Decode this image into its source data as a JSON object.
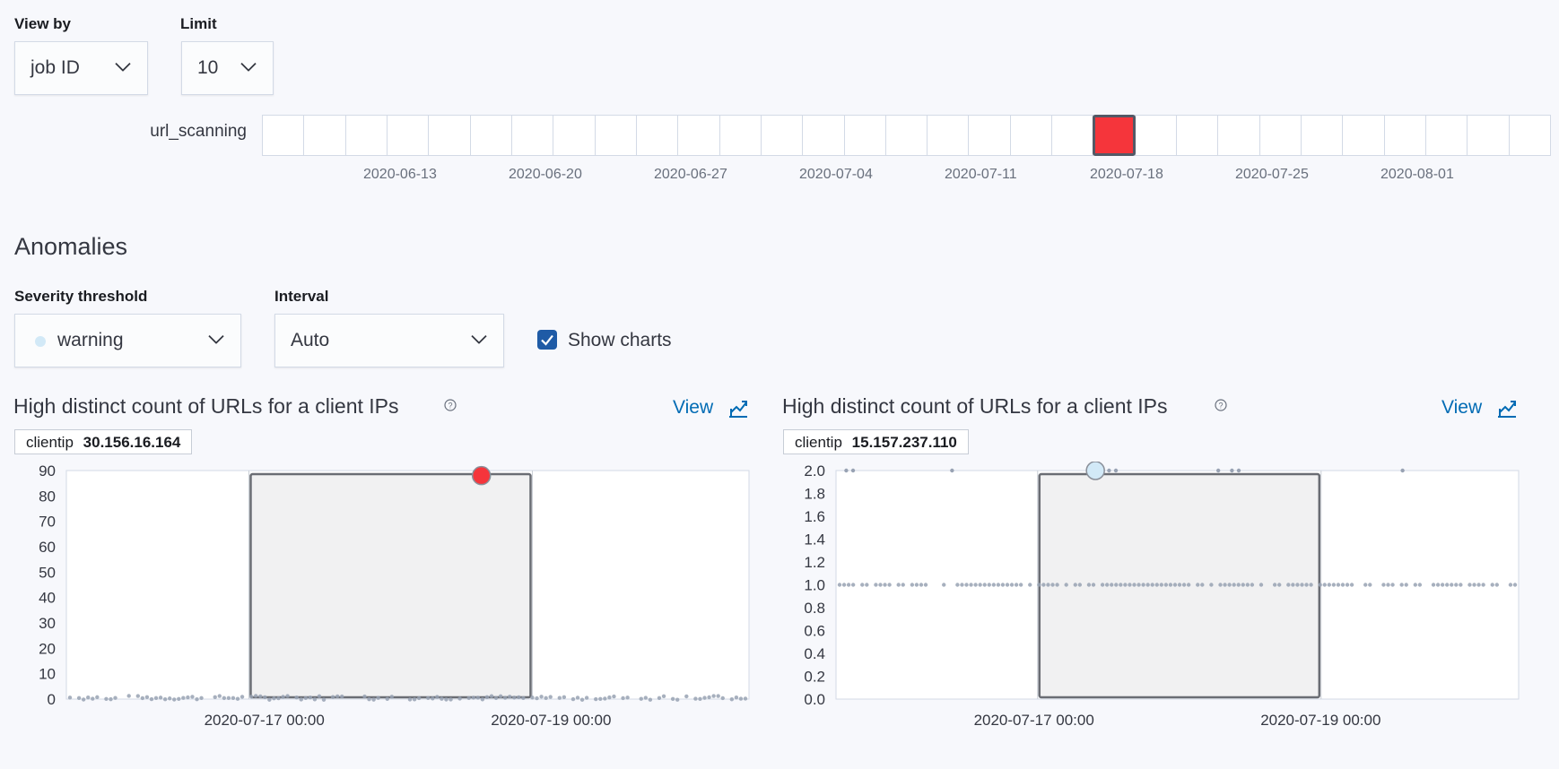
{
  "controls": {
    "view_by_label": "View by",
    "view_by_value": "job ID",
    "limit_label": "Limit",
    "limit_value": "10"
  },
  "swimlane": {
    "row_label": "url_scanning",
    "cell_count": 31,
    "anomaly_cell_index": 20,
    "anomaly_color": "#f5353b",
    "date_ticks": [
      "2020-06-13",
      "2020-06-20",
      "2020-06-27",
      "2020-07-04",
      "2020-07-11",
      "2020-07-18",
      "2020-07-25",
      "2020-08-01"
    ]
  },
  "anomalies": {
    "section_title": "Anomalies",
    "severity_label": "Severity threshold",
    "severity_value": "warning",
    "severity_dot_color": "#d2e9f7",
    "interval_label": "Interval",
    "interval_value": "Auto",
    "show_charts_label": "Show charts",
    "show_charts_checked": true
  },
  "charts": [
    {
      "title": "High distinct count of URLs for a client IPs",
      "view_label": "View",
      "entity_name": "clientip",
      "entity_value": "30.156.16.164"
    },
    {
      "title": "High distinct count of URLs for a client IPs",
      "view_label": "View",
      "entity_name": "clientip",
      "entity_value": "15.157.237.110"
    }
  ],
  "chart_data": [
    {
      "type": "scatter",
      "title": "High distinct count of URLs for a client IPs",
      "x_ticks": [
        "2020-07-17 00:00",
        "2020-07-19 00:00"
      ],
      "y_ticks": [
        0,
        10,
        20,
        30,
        40,
        50,
        60,
        70,
        80,
        90
      ],
      "ylim": [
        0,
        90
      ],
      "baseline_value": 0.5,
      "anomaly": {
        "value": 88,
        "severity_color": "#f5353b"
      },
      "highlight_window": "around anomaly"
    },
    {
      "type": "scatter",
      "title": "High distinct count of URLs for a client IPs",
      "x_ticks": [
        "2020-07-17 00:00",
        "2020-07-19 00:00"
      ],
      "y_ticks": [
        "0.0",
        "0.2",
        "0.4",
        "0.6",
        "0.8",
        "1.0",
        "1.2",
        "1.4",
        "1.6",
        "1.8",
        "2.0"
      ],
      "ylim": [
        0,
        2
      ],
      "baseline_value": 1.0,
      "peak_value": 2.0,
      "anomaly": {
        "value": 2.0,
        "severity_color": "#d2e9f7"
      },
      "highlight_window": "around anomaly"
    }
  ]
}
